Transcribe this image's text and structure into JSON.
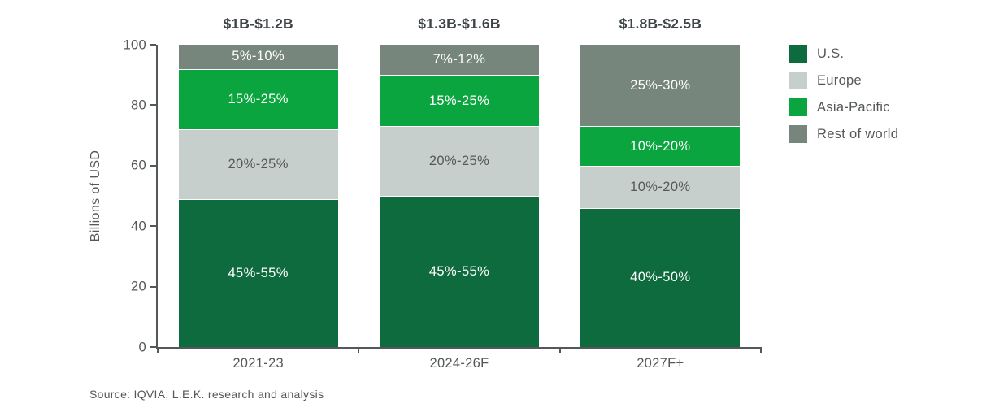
{
  "chart_data": {
    "type": "bar",
    "stacked": true,
    "ylabel": "Billions of USD",
    "ylim": [
      0,
      100
    ],
    "yticks": [
      0,
      20,
      40,
      60,
      80,
      100
    ],
    "grid": false,
    "legend_position": "right",
    "categories": [
      "2021-23",
      "2024-26F",
      "2027F+"
    ],
    "category_headers": [
      "$1B-$1.2B",
      "$1.3B-$1.6B",
      "$1.8B-$2.5B"
    ],
    "series": [
      {
        "name": "U.S.",
        "color": "#0e6b3d",
        "label_color": "#ffffff",
        "values": [
          49,
          50,
          46
        ],
        "segment_labels": [
          "45%-55%",
          "45%-55%",
          "40%-50%"
        ]
      },
      {
        "name": "Europe",
        "color": "#c7cfcc",
        "label_color": "#54585a",
        "values": [
          23,
          23,
          14
        ],
        "segment_labels": [
          "20%-25%",
          "20%-25%",
          "10%-20%"
        ]
      },
      {
        "name": "Asia-Pacific",
        "color": "#0aa53e",
        "label_color": "#ffffff",
        "values": [
          20,
          17,
          13
        ],
        "segment_labels": [
          "15%-25%",
          "15%-25%",
          "10%-20%"
        ]
      },
      {
        "name": "Rest of world",
        "color": "#76867c",
        "label_color": "#ffffff",
        "values": [
          8,
          10,
          27
        ],
        "segment_labels": [
          "5%-10%",
          "7%-12%",
          "25%-30%"
        ]
      }
    ],
    "source": "Source: IQVIA; L.E.K. research and analysis"
  },
  "colors": {
    "axis": "#54585a",
    "header_text": "#3e4549",
    "background": "#ffffff",
    "segment_divider": "#ffffff"
  }
}
